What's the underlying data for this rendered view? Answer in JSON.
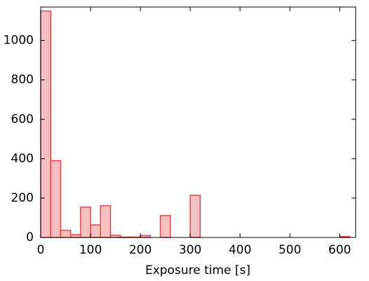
{
  "chart_data": {
    "type": "histogram",
    "xlabel": "Exposure time [s]",
    "bins": [
      0,
      20,
      40,
      60,
      80,
      100,
      120,
      140,
      160,
      180,
      200,
      220,
      240,
      260,
      280,
      300,
      320,
      340,
      360,
      380,
      400,
      420,
      440,
      460,
      480,
      500,
      520,
      540,
      560,
      580,
      600,
      620
    ],
    "counts": [
      1150,
      390,
      36,
      14,
      154,
      64,
      161,
      11,
      2,
      2,
      10,
      0,
      111,
      0,
      0,
      214,
      0,
      0,
      0,
      0,
      0,
      0,
      0,
      0,
      0,
      0,
      0,
      0,
      0,
      0,
      5
    ],
    "color": "#f7c0c0",
    "edgecolor": "#e8474a",
    "xlim": [
      0,
      632
    ],
    "ylim": [
      0,
      1170
    ],
    "xticks": [
      0,
      100,
      200,
      300,
      400,
      500,
      600
    ],
    "yticks": [
      0,
      200,
      400,
      600,
      800,
      1000
    ]
  }
}
